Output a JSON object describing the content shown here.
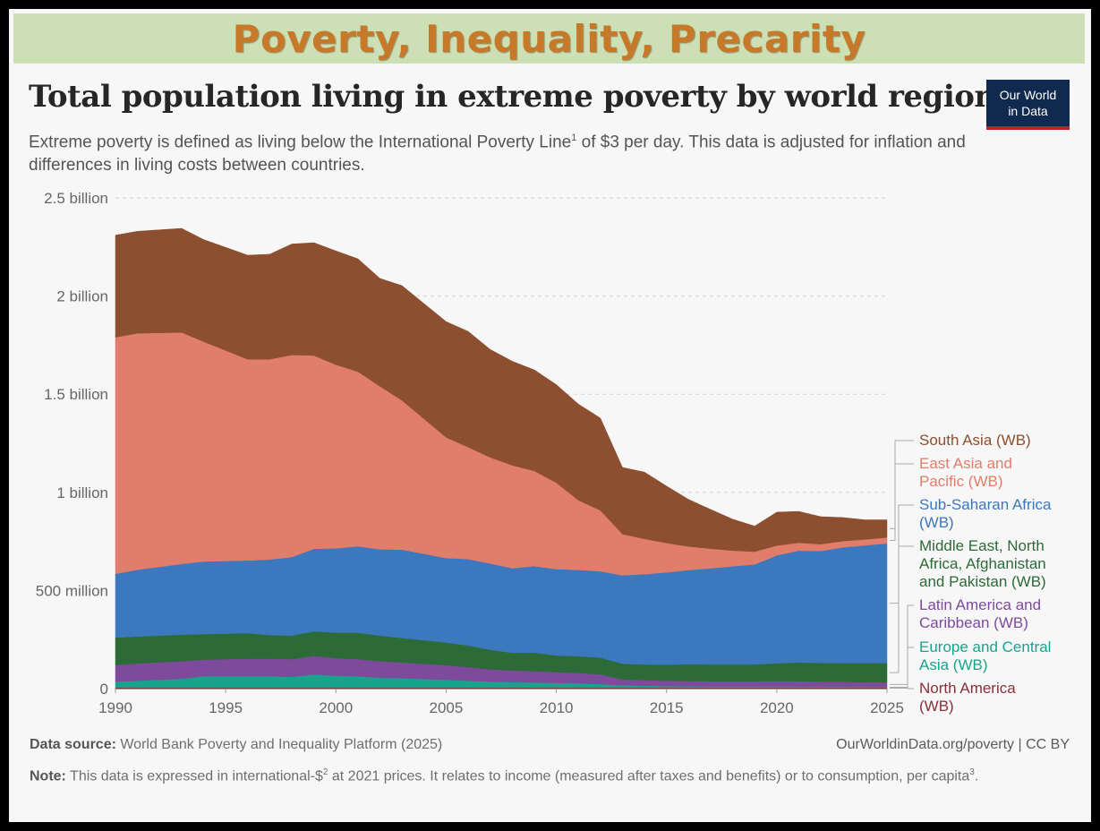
{
  "banner": {
    "title": "Poverty, Inequality, Precarity"
  },
  "header": {
    "title": "Total population living in extreme poverty by world region",
    "subtitle_pre": "Extreme poverty is defined as living below the International Poverty Line",
    "subtitle_sup": "1",
    "subtitle_post": " of $3 per day. This data is adjusted for inflation and differences in living costs between countries.",
    "logo_line1": "Our World",
    "logo_line2": "in Data"
  },
  "footer": {
    "source_label": "Data source:",
    "source_text": " World Bank Poverty and Inequality Platform (2025)",
    "url": "OurWorldinData.org/poverty | CC BY",
    "note_label": "Note:",
    "note_text_1": " This data is expressed in international-$",
    "note_sup_1": "2",
    "note_text_2": " at 2021 prices. It relates to income (measured after taxes and benefits) or to consumption, per capita",
    "note_sup_2": "3",
    "note_text_3": "."
  },
  "chart_data": {
    "type": "area",
    "stacked": true,
    "title": "Total population living in extreme poverty by world region",
    "xlabel": "",
    "ylabel": "",
    "xlim": [
      1990,
      2025
    ],
    "ylim": [
      0,
      2500000000
    ],
    "grid": true,
    "x": [
      1990,
      1991,
      1993,
      1994,
      1996,
      1997,
      1998,
      1999,
      2000,
      2001,
      2002,
      2003,
      2005,
      2006,
      2007,
      2008,
      2009,
      2010,
      2011,
      2012,
      2013,
      2014,
      2015,
      2016,
      2017,
      2018,
      2019,
      2020,
      2021,
      2022,
      2023,
      2024,
      2025
    ],
    "x_ticks": [
      1990,
      1995,
      2000,
      2005,
      2010,
      2015,
      2020,
      2025
    ],
    "x_tick_labels": [
      "1990",
      "1995",
      "2000",
      "2005",
      "2010",
      "2015",
      "2020",
      "2025"
    ],
    "y_ticks": [
      0,
      500000000,
      1000000000,
      1500000000,
      2000000000,
      2500000000
    ],
    "y_tick_labels": [
      "0",
      "500 million",
      "1 billion",
      "1.5 billion",
      "2 billion",
      "2.5 billion"
    ],
    "series": [
      {
        "name": "North America (WB)",
        "color": "#883039",
        "values": [
          5000000,
          5000000,
          5000000,
          5000000,
          5000000,
          5000000,
          5000000,
          5000000,
          5000000,
          5000000,
          5000000,
          5000000,
          5000000,
          5000000,
          5000000,
          5000000,
          5000000,
          5000000,
          5000000,
          5000000,
          5000000,
          5000000,
          5000000,
          5000000,
          5000000,
          5000000,
          5000000,
          5000000,
          5000000,
          5000000,
          5000000,
          5000000,
          5000000
        ]
      },
      {
        "name": "Europe and Central Asia (WB)",
        "color": "#18a48c",
        "values": [
          30000000,
          35000000,
          45000000,
          58000000,
          58000000,
          58000000,
          55000000,
          67000000,
          60000000,
          58000000,
          50000000,
          48000000,
          40000000,
          35000000,
          30000000,
          28000000,
          26000000,
          24000000,
          22000000,
          18000000,
          12000000,
          10000000,
          8000000,
          7000000,
          6000000,
          6000000,
          6000000,
          6000000,
          6000000,
          5000000,
          5000000,
          4000000,
          4000000
        ]
      },
      {
        "name": "Latin America and Caribbean (WB)",
        "color": "#7e4a9c",
        "values": [
          85000000,
          88000000,
          90000000,
          85000000,
          90000000,
          90000000,
          90000000,
          95000000,
          90000000,
          87000000,
          85000000,
          80000000,
          75000000,
          70000000,
          63000000,
          60000000,
          58000000,
          55000000,
          53000000,
          50000000,
          30000000,
          28000000,
          27000000,
          27000000,
          27000000,
          27000000,
          27000000,
          28000000,
          27000000,
          26000000,
          25000000,
          24000000,
          24000000
        ]
      },
      {
        "name": "Middle East, North Africa, Afghanistan and Pakistan (WB)",
        "color": "#2c6a37",
        "values": [
          140000000,
          138000000,
          135000000,
          130000000,
          130000000,
          120000000,
          120000000,
          125000000,
          130000000,
          135000000,
          130000000,
          125000000,
          115000000,
          110000000,
          100000000,
          90000000,
          95000000,
          85000000,
          85000000,
          85000000,
          80000000,
          80000000,
          82000000,
          85000000,
          85000000,
          85000000,
          85000000,
          90000000,
          95000000,
          95000000,
          95000000,
          97000000,
          97000000
        ]
      },
      {
        "name": "Sub-Saharan Africa (WB)",
        "color": "#3c78bd",
        "values": [
          325000000,
          340000000,
          360000000,
          370000000,
          370000000,
          385000000,
          400000000,
          420000000,
          430000000,
          440000000,
          440000000,
          450000000,
          430000000,
          440000000,
          440000000,
          430000000,
          440000000,
          440000000,
          440000000,
          440000000,
          450000000,
          460000000,
          470000000,
          480000000,
          490000000,
          500000000,
          510000000,
          550000000,
          570000000,
          570000000,
          590000000,
          600000000,
          610000000
        ]
      },
      {
        "name": "East Asia and Pacific (WB)",
        "color": "#e17d6b",
        "values": [
          1205000000,
          1204000000,
          1180000000,
          1120000000,
          1025000000,
          1020000000,
          1030000000,
          985000000,
          935000000,
          890000000,
          830000000,
          760000000,
          615000000,
          570000000,
          540000000,
          525000000,
          485000000,
          440000000,
          355000000,
          310000000,
          210000000,
          180000000,
          150000000,
          120000000,
          100000000,
          80000000,
          65000000,
          50000000,
          40000000,
          35000000,
          32000000,
          30000000,
          30000000
        ]
      },
      {
        "name": "South Asia (WB)",
        "color": "#8c4f2f",
        "values": [
          520000000,
          520000000,
          530000000,
          520000000,
          530000000,
          535000000,
          565000000,
          575000000,
          580000000,
          575000000,
          550000000,
          585000000,
          590000000,
          590000000,
          550000000,
          530000000,
          515000000,
          500000000,
          490000000,
          470000000,
          340000000,
          340000000,
          290000000,
          240000000,
          200000000,
          160000000,
          130000000,
          170000000,
          160000000,
          140000000,
          120000000,
          100000000,
          90000000
        ]
      }
    ]
  }
}
